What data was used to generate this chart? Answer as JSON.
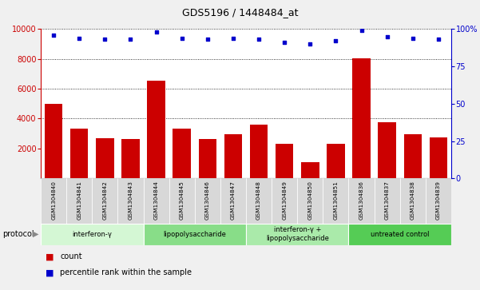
{
  "title": "GDS5196 / 1448484_at",
  "samples": [
    "GSM1304840",
    "GSM1304841",
    "GSM1304842",
    "GSM1304843",
    "GSM1304844",
    "GSM1304845",
    "GSM1304846",
    "GSM1304847",
    "GSM1304848",
    "GSM1304849",
    "GSM1304850",
    "GSM1304851",
    "GSM1304836",
    "GSM1304837",
    "GSM1304838",
    "GSM1304839"
  ],
  "counts": [
    5000,
    3350,
    2700,
    2650,
    6550,
    3350,
    2650,
    2950,
    3600,
    2300,
    1100,
    2300,
    8050,
    3750,
    2980,
    2750
  ],
  "percentiles": [
    96,
    94,
    93,
    93,
    98,
    94,
    93,
    94,
    93,
    91,
    90,
    92,
    99,
    95,
    94,
    93
  ],
  "groups": [
    {
      "label": "interferon-γ",
      "start": 0,
      "end": 4,
      "color": "#d4f7d4"
    },
    {
      "label": "lipopolysaccharide",
      "start": 4,
      "end": 8,
      "color": "#88dd88"
    },
    {
      "label": "interferon-γ +\nlipopolysaccharide",
      "start": 8,
      "end": 12,
      "color": "#aaeaaa"
    },
    {
      "label": "untreated control",
      "start": 12,
      "end": 16,
      "color": "#55cc55"
    }
  ],
  "bar_color": "#cc0000",
  "dot_color": "#0000cc",
  "ylim_left": [
    0,
    10000
  ],
  "ylim_right": [
    0,
    100
  ],
  "yticks_left": [
    2000,
    4000,
    6000,
    8000,
    10000
  ],
  "yticks_right": [
    0,
    25,
    50,
    75,
    100
  ],
  "fig_bg": "#f0f0f0",
  "axes_bg": "#ffffff"
}
